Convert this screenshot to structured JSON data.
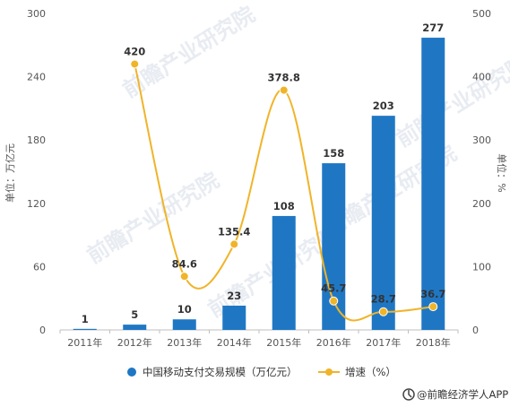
{
  "chart_data": {
    "type": "bar+line",
    "categories": [
      "2011年",
      "2012年",
      "2013年",
      "2014年",
      "2015年",
      "2016年",
      "2017年",
      "2018年"
    ],
    "series": [
      {
        "name": "中国移动支付交易规模（万亿元）",
        "type": "bar",
        "axis": "left",
        "values": [
          1,
          5,
          10,
          23,
          108,
          158,
          203,
          277
        ],
        "labels": [
          "1",
          "5",
          "10",
          "23",
          "108",
          "158",
          "203",
          "277"
        ]
      },
      {
        "name": "增速（%）",
        "type": "line",
        "axis": "right",
        "values": [
          null,
          420,
          84.6,
          135.4,
          378.8,
          45.7,
          28.7,
          36.7
        ],
        "labels": [
          "",
          "420",
          "84.6",
          "135.4",
          "378.8",
          "45.7",
          "28.7",
          "36.7"
        ]
      }
    ],
    "ylabel_left": "单位：万亿元",
    "ylabel_right": "单位：%",
    "ylim_left": [
      0,
      300
    ],
    "yticks_left": [
      "0",
      "60",
      "120",
      "180",
      "240",
      "300"
    ],
    "ylim_right": [
      0,
      500
    ],
    "yticks_right": [
      "0",
      "100",
      "200",
      "300",
      "400",
      "500"
    ],
    "grid": false,
    "legend_position": "bottom",
    "colors": {
      "bar": "#1f77c4",
      "line": "#f0b429"
    }
  },
  "source": "@前瞻经济学人APP",
  "watermark": "前瞻产业研究院"
}
